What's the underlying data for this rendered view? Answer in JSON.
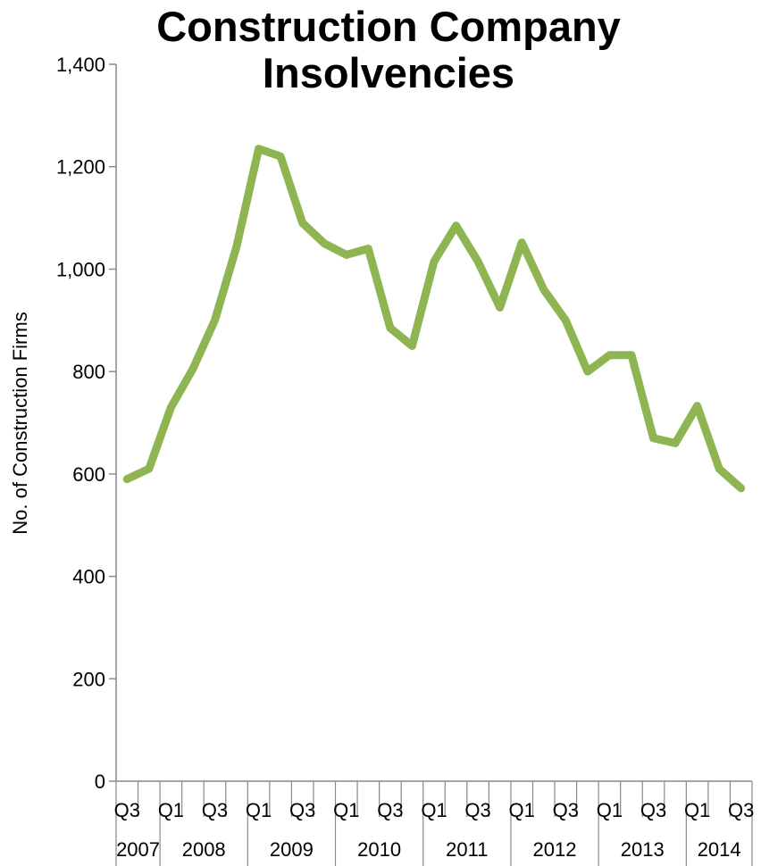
{
  "chart_data": {
    "type": "line",
    "title": "Construction Company Insolvencies",
    "xlabel": "",
    "ylabel": "No. of Construction Firms",
    "ylim": [
      0,
      1400
    ],
    "yticks": [
      0,
      200,
      400,
      600,
      800,
      1000,
      1200,
      1400
    ],
    "ytick_labels": [
      "0",
      "200",
      "400",
      "600",
      "800",
      "1,000",
      "1,200",
      "1,400"
    ],
    "grid": false,
    "legend": "none",
    "colors": {
      "line": "#8fb552",
      "axis": "#898989"
    },
    "quarter_labels": [
      "Q3",
      "",
      "Q1",
      "",
      "Q3",
      "",
      "Q1",
      "",
      "Q3",
      "",
      "Q1",
      "",
      "Q3",
      "",
      "Q1",
      "",
      "Q3",
      "",
      "Q1",
      "",
      "Q3",
      "",
      "Q1",
      "",
      "Q3",
      "",
      "Q1",
      "",
      "Q3"
    ],
    "years": [
      {
        "label": "2007",
        "start": 0,
        "end": 1
      },
      {
        "label": "2008",
        "start": 2,
        "end": 5
      },
      {
        "label": "2009",
        "start": 6,
        "end": 9
      },
      {
        "label": "2010",
        "start": 10,
        "end": 13
      },
      {
        "label": "2011",
        "start": 14,
        "end": 17
      },
      {
        "label": "2012",
        "start": 18,
        "end": 21
      },
      {
        "label": "2013",
        "start": 22,
        "end": 25
      },
      {
        "label": "2014",
        "start": 26,
        "end": 28
      }
    ],
    "series": [
      {
        "values": [
          590,
          610,
          730,
          805,
          900,
          1045,
          1235,
          1220,
          1090,
          1050,
          1028,
          1040,
          885,
          850,
          1015,
          1085,
          1015,
          925,
          1052,
          960,
          900,
          800,
          832,
          832,
          670,
          660,
          733,
          610,
          572
        ]
      }
    ]
  }
}
